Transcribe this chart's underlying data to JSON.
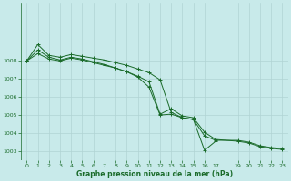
{
  "background_color": "#c8eaea",
  "grid_color": "#b0d4d4",
  "line_color": "#1a6b2a",
  "xlabel": "Graphe pression niveau de la mer (hPa)",
  "ylim": [
    1002.5,
    1011.2
  ],
  "xlim": [
    -0.5,
    23.5
  ],
  "yticks": [
    1003,
    1004,
    1005,
    1006,
    1007,
    1008
  ],
  "xtick_positions": [
    0,
    1,
    2,
    3,
    4,
    5,
    6,
    7,
    8,
    9,
    10,
    11,
    12,
    13,
    14,
    15,
    16,
    17,
    19,
    20,
    21,
    22,
    23
  ],
  "xtick_labels": [
    "0",
    "1",
    "2",
    "3",
    "4",
    "5",
    "6",
    "7",
    "8",
    "9",
    "10",
    "11",
    "12",
    "13",
    "14",
    "15",
    "16",
    "17",
    "19",
    "20",
    "21",
    "22",
    "23"
  ],
  "series": [
    {
      "x": [
        0,
        1,
        2,
        3,
        4,
        5,
        6,
        7,
        8,
        9,
        10,
        11,
        12,
        13,
        14,
        15,
        16,
        17
      ],
      "y": [
        1008.0,
        1008.9,
        1008.3,
        1008.2,
        1008.35,
        1008.25,
        1008.15,
        1008.05,
        1007.9,
        1007.75,
        1007.55,
        1007.35,
        1006.95,
        1005.15,
        1004.85,
        1004.75,
        1003.05,
        1003.55
      ]
    },
    {
      "x": [
        0,
        1,
        2,
        3,
        4,
        5,
        6,
        7,
        8,
        9,
        10,
        11,
        12,
        13,
        14,
        15,
        16,
        17,
        19,
        20,
        21,
        22,
        23
      ],
      "y": [
        1008.0,
        1008.6,
        1008.2,
        1008.05,
        1008.2,
        1008.1,
        1007.95,
        1007.8,
        1007.6,
        1007.4,
        1007.15,
        1006.85,
        1005.05,
        1005.35,
        1004.95,
        1004.85,
        1004.05,
        1003.65,
        1003.55,
        1003.45,
        1003.25,
        1003.15,
        1003.1
      ]
    },
    {
      "x": [
        0,
        1,
        2,
        3,
        4,
        5,
        6,
        7,
        8,
        9,
        10,
        11,
        12,
        13,
        14,
        15,
        16,
        17,
        19,
        20,
        21,
        22,
        23
      ],
      "y": [
        1008.0,
        1008.4,
        1008.1,
        1008.0,
        1008.15,
        1008.05,
        1007.9,
        1007.75,
        1007.6,
        1007.4,
        1007.1,
        1006.55,
        1005.0,
        1005.05,
        1004.85,
        1004.75,
        1003.85,
        1003.6,
        1003.6,
        1003.5,
        1003.3,
        1003.2,
        1003.15
      ]
    }
  ]
}
